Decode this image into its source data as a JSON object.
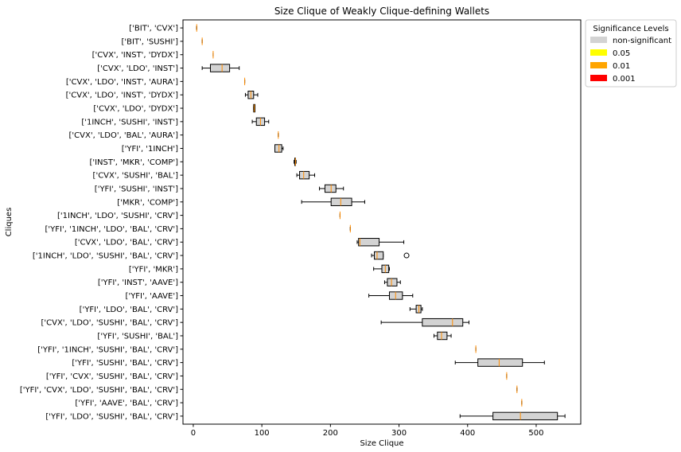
{
  "chart_data": {
    "type": "boxplot",
    "orientation": "horizontal",
    "title": "Size Clique of Weakly Clique-defining Wallets",
    "xlabel": "Size Clique",
    "ylabel": "Cliques",
    "xlim": [
      -15,
      565
    ],
    "xticks": [
      0,
      100,
      200,
      300,
      400,
      500
    ],
    "grid": false,
    "legend": {
      "title": "Significance Levels",
      "placement": "outside-top-right",
      "entries": [
        {
          "label": "non-significant",
          "color": "#d3d3d3"
        },
        {
          "label": "0.05",
          "color": "#ffff00"
        },
        {
          "label": "0.01",
          "color": "#ffa500"
        },
        {
          "label": "0.001",
          "color": "#ff0000"
        }
      ]
    },
    "box_color": "#d3d3d3",
    "median_color": "#ff8c00",
    "categories": [
      "['BIT', 'CVX']",
      "['BIT', 'SUSHI']",
      "['CVX', 'INST', 'DYDX']",
      "['CVX', 'LDO', 'INST']",
      "['CVX', 'LDO', 'INST', 'AURA']",
      "['CVX', 'LDO', 'INST', 'DYDX']",
      "['CVX', 'LDO', 'DYDX']",
      "['1INCH', 'SUSHI', 'INST']",
      "['CVX', 'LDO', 'BAL', 'AURA']",
      "['YFI', '1INCH']",
      "['INST', 'MKR', 'COMP']",
      "['CVX', 'SUSHI', 'BAL']",
      "['YFI', 'SUSHI', 'INST']",
      "['MKR', 'COMP']",
      "['1INCH', 'LDO', 'SUSHI', 'CRV']",
      "['YFI', '1INCH', 'LDO', 'BAL', 'CRV']",
      "['CVX', 'LDO', 'BAL', 'CRV']",
      "['1INCH', 'LDO', 'SUSHI', 'BAL', 'CRV']",
      "['YFI', 'MKR']",
      "['YFI', 'INST', 'AAVE']",
      "['YFI', 'AAVE']",
      "['YFI', 'LDO', 'BAL', 'CRV']",
      "['CVX', 'LDO', 'SUSHI', 'BAL', 'CRV']",
      "['YFI', 'SUSHI', 'BAL']",
      "['YFI', '1INCH', 'SUSHI', 'BAL', 'CRV']",
      "['YFI', 'SUSHI', 'BAL', 'CRV']",
      "['YFI', 'CVX', 'SUSHI', 'BAL', 'CRV']",
      "['YFI', 'CVX', 'LDO', 'SUSHI', 'BAL', 'CRV']",
      "['YFI', 'AAVE', 'BAL', 'CRV']",
      "['YFI', 'LDO', 'SUSHI', 'BAL', 'CRV']"
    ],
    "boxes": [
      {
        "whislo": 5,
        "q1": 5,
        "med": 5,
        "q3": 5,
        "whishi": 5,
        "fliers": []
      },
      {
        "whislo": 13,
        "q1": 13,
        "med": 13,
        "q3": 13,
        "whishi": 13,
        "fliers": []
      },
      {
        "whislo": 29,
        "q1": 29,
        "med": 29,
        "q3": 29,
        "whishi": 29,
        "fliers": []
      },
      {
        "whislo": 13,
        "q1": 25,
        "med": 42,
        "q3": 53,
        "whishi": 67,
        "fliers": []
      },
      {
        "whislo": 75,
        "q1": 75,
        "med": 75,
        "q3": 75,
        "whishi": 75,
        "fliers": []
      },
      {
        "whislo": 76,
        "q1": 80,
        "med": 84,
        "q3": 88,
        "whishi": 94,
        "fliers": []
      },
      {
        "whislo": 88,
        "q1": 88,
        "med": 89,
        "q3": 90,
        "whishi": 90,
        "fliers": []
      },
      {
        "whislo": 86,
        "q1": 92,
        "med": 98,
        "q3": 104,
        "whishi": 110,
        "fliers": []
      },
      {
        "whislo": 124,
        "q1": 124,
        "med": 124,
        "q3": 124,
        "whishi": 124,
        "fliers": []
      },
      {
        "whislo": 119,
        "q1": 119,
        "med": 125,
        "q3": 129,
        "whishi": 131,
        "fliers": []
      },
      {
        "whislo": 147,
        "q1": 148,
        "med": 149,
        "q3": 149,
        "whishi": 150,
        "fliers": []
      },
      {
        "whislo": 151,
        "q1": 155,
        "med": 161,
        "q3": 169,
        "whishi": 177,
        "fliers": []
      },
      {
        "whislo": 184,
        "q1": 192,
        "med": 201,
        "q3": 208,
        "whishi": 219,
        "fliers": []
      },
      {
        "whislo": 158,
        "q1": 201,
        "med": 215,
        "q3": 231,
        "whishi": 250,
        "fliers": []
      },
      {
        "whislo": 214,
        "q1": 214,
        "med": 214,
        "q3": 214,
        "whishi": 214,
        "fliers": []
      },
      {
        "whislo": 229,
        "q1": 229,
        "med": 229,
        "q3": 229,
        "whishi": 229,
        "fliers": []
      },
      {
        "whislo": 239,
        "q1": 241,
        "med": 243,
        "q3": 271,
        "whishi": 307,
        "fliers": []
      },
      {
        "whislo": 260,
        "q1": 264,
        "med": 268,
        "q3": 277,
        "whishi": 277,
        "fliers": [
          311
        ]
      },
      {
        "whislo": 263,
        "q1": 275,
        "med": 280,
        "q3": 285,
        "whishi": 286,
        "fliers": []
      },
      {
        "whislo": 279,
        "q1": 283,
        "med": 289,
        "q3": 297,
        "whishi": 302,
        "fliers": []
      },
      {
        "whislo": 256,
        "q1": 286,
        "med": 295,
        "q3": 305,
        "whishi": 320,
        "fliers": []
      },
      {
        "whislo": 316,
        "q1": 325,
        "med": 329,
        "q3": 332,
        "whishi": 334,
        "fliers": []
      },
      {
        "whislo": 274,
        "q1": 334,
        "med": 378,
        "q3": 393,
        "whishi": 402,
        "fliers": []
      },
      {
        "whislo": 351,
        "q1": 356,
        "med": 362,
        "q3": 370,
        "whishi": 376,
        "fliers": []
      },
      {
        "whislo": 412,
        "q1": 412,
        "med": 412,
        "q3": 412,
        "whishi": 412,
        "fliers": []
      },
      {
        "whislo": 382,
        "q1": 415,
        "med": 446,
        "q3": 480,
        "whishi": 512,
        "fliers": []
      },
      {
        "whislo": 457,
        "q1": 457,
        "med": 457,
        "q3": 457,
        "whishi": 457,
        "fliers": []
      },
      {
        "whislo": 472,
        "q1": 472,
        "med": 472,
        "q3": 472,
        "whishi": 472,
        "fliers": []
      },
      {
        "whislo": 479,
        "q1": 479,
        "med": 479,
        "q3": 479,
        "whishi": 479,
        "fliers": []
      },
      {
        "whislo": 389,
        "q1": 437,
        "med": 477,
        "q3": 531,
        "whishi": 542,
        "fliers": []
      }
    ]
  }
}
